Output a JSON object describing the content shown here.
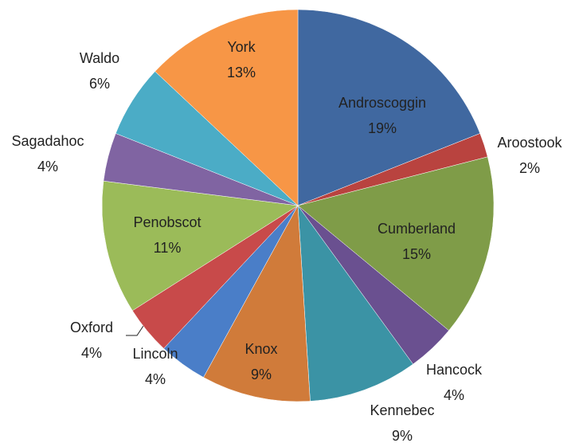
{
  "chart_data": {
    "type": "pie",
    "categories": [
      "Androscoggin",
      "Aroostook",
      "Cumberland",
      "Hancock",
      "Kennebec",
      "Knox",
      "Lincoln",
      "Oxford",
      "Penobscot",
      "Sagadahoc",
      "Waldo",
      "York"
    ],
    "values": [
      19,
      2,
      15,
      4,
      9,
      9,
      4,
      4,
      11,
      4,
      6,
      13
    ],
    "value_labels": [
      "19%",
      "2%",
      "15%",
      "4%",
      "9%",
      "9%",
      "4%",
      "4%",
      "11%",
      "4%",
      "6%",
      "13%"
    ],
    "colors": [
      "#4068a0",
      "#b9433f",
      "#7f9c48",
      "#6a5090",
      "#3b93a5",
      "#d07b3a",
      "#4a7ec8",
      "#c84a4a",
      "#9bbb59",
      "#8064a2",
      "#4bacc6",
      "#f79646"
    ]
  }
}
